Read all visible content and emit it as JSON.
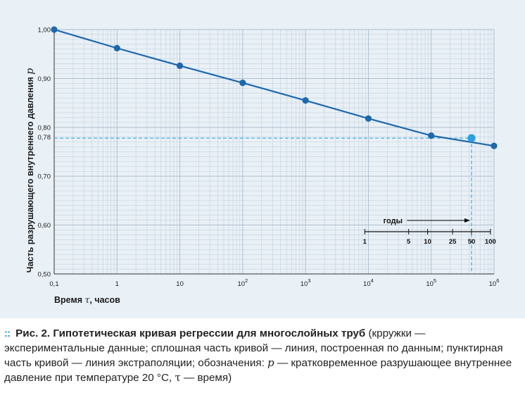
{
  "chart_data": {
    "type": "line",
    "x_scale": "log",
    "x_range": [
      0.1,
      1000000
    ],
    "y_range": [
      0.5,
      1.0
    ],
    "x_ticks": [
      "0,1",
      "1",
      "10",
      "10",
      "10",
      "10",
      "10",
      "10"
    ],
    "x_tick_exps": [
      "",
      "",
      "",
      "2",
      "3",
      "4",
      "5",
      "6"
    ],
    "y_ticks": [
      "1,00",
      "0,90",
      "0,80",
      "0,78",
      "0,70",
      "0,60",
      "0,50"
    ],
    "y_tick_values": [
      1.0,
      0.9,
      0.8,
      0.78,
      0.7,
      0.6,
      0.5
    ],
    "xlabel_pre": "Время ",
    "xlabel_sym": "τ",
    "xlabel_post": ", часов",
    "ylabel": "Часть разрушающего внутреннего давления ",
    "ylabel_sym": "p",
    "grid": true,
    "series": [
      {
        "x": [
          0.1,
          1,
          10,
          100,
          1000,
          10000,
          100000,
          1000000
        ],
        "y": [
          1.0,
          0.962,
          0.926,
          0.891,
          0.855,
          0.818,
          0.783,
          0.762
        ],
        "style": "solid line with circle markers"
      }
    ],
    "extrapolation_point": {
      "x": 438000,
      "y": 0.778
    },
    "years_inset": {
      "label": "годы",
      "ticks": [
        "1",
        "5",
        "10",
        "25",
        "50",
        "100"
      ]
    }
  },
  "caption": {
    "marker": "::",
    "lead": "Рис. 2. Гипотетическая кривая регрессии для многослойных труб",
    "text1": " (крружки — экспериментальные данные; сплошная часть кривой — линия, построенная по данным; пунктирная часть кривой — линия экстраполяции; обозначения: ",
    "sym_p": "p",
    "text2": " — кратковременное разрушающее внутреннее давление при температуре 20 °С, ",
    "sym_tau": "τ",
    "text3": " — время)"
  },
  "colors": {
    "panel": "#e9f0f6",
    "grid": "#c4d2df",
    "line": "#1d68ad",
    "marker": "#1d68ad",
    "highlight": "#2a9ee0",
    "dashed": "#2a9ee0",
    "inset_arrow": "#000000"
  }
}
